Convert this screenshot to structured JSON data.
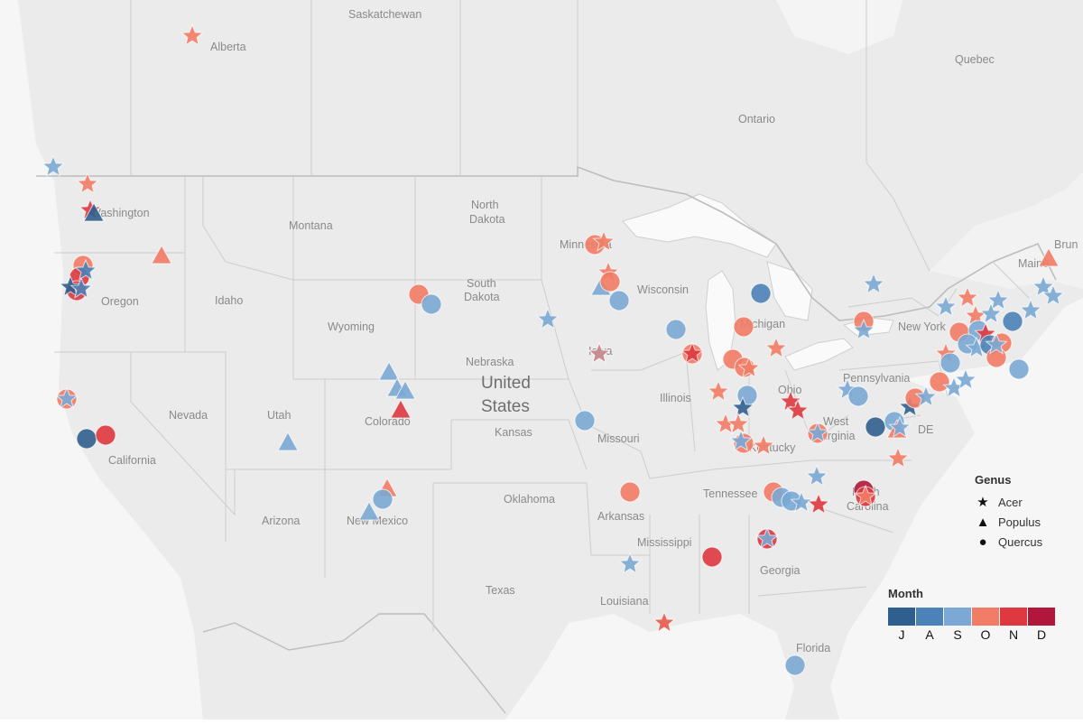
{
  "map": {
    "labels": {
      "saskatchewan": "Saskatchewan",
      "alberta": "Alberta",
      "quebec": "Quebec",
      "ontario": "Ontario",
      "washington": "Washington",
      "montana": "Montana",
      "north_dakota_1": "North",
      "north_dakota_2": "Dakota",
      "minnesota": "Minnesota",
      "maine": "Maine",
      "brunswick": "Brun",
      "south_dakota_1": "South",
      "south_dakota_2": "Dakota",
      "wisconsin": "Wisconsin",
      "oregon": "Oregon",
      "idaho": "Idaho",
      "wyoming": "Wyoming",
      "michigan": "Michigan",
      "new_york": "New York",
      "nebraska": "Nebraska",
      "iowa": "Iowa",
      "united_states_1": "United",
      "united_states_2": "States",
      "pennsylvania": "Pennsylvania",
      "illinois": "Illinois",
      "ohio": "Ohio",
      "nevada": "Nevada",
      "utah": "Utah",
      "colorado": "Colorado",
      "kansas": "Kansas",
      "missouri": "Missouri",
      "west_virginia_1": "West",
      "west_virginia_2": "Virginia",
      "kentucky": "Kentucky",
      "de": "DE",
      "california": "California",
      "tennessee": "Tennessee",
      "north_carolina_1": "North",
      "north_carolina_2": "Carolina",
      "oklahoma": "Oklahoma",
      "arizona": "Arizona",
      "new_mexico": "New Mexico",
      "arkansas": "Arkansas",
      "mississippi": "Mississippi",
      "georgia": "Georgia",
      "texas": "Texas",
      "louisiana": "Louisiana",
      "florida": "Florida"
    }
  },
  "legend": {
    "genus_title": "Genus",
    "genus_items": [
      {
        "label": "Acer",
        "icon": "star-icon"
      },
      {
        "label": "Populus",
        "icon": "triangle-icon"
      },
      {
        "label": "Quercus",
        "icon": "circle-icon"
      }
    ],
    "month_title": "Month",
    "month_colors": [
      "#2f5f8e",
      "#4b82b7",
      "#7ba8d4",
      "#f27c66",
      "#de3940",
      "#b0173a"
    ],
    "month_ticks": [
      "J",
      "A",
      "S",
      "O",
      "N",
      "D"
    ]
  },
  "colors": {
    "background": "#ebebeb",
    "land": "#e4e4e4",
    "water": "#f7f7f7",
    "borders": "#bdbdbd"
  }
}
